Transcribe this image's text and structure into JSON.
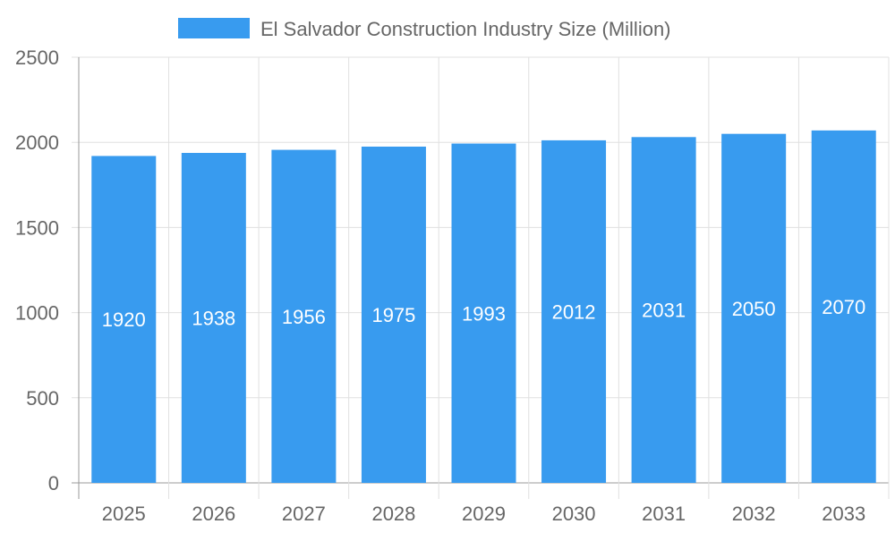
{
  "chart_data": {
    "type": "bar",
    "title": "",
    "xlabel": "",
    "ylabel": "",
    "categories": [
      "2025",
      "2026",
      "2027",
      "2028",
      "2029",
      "2030",
      "2031",
      "2032",
      "2033"
    ],
    "series": [
      {
        "name": "El Salvador Construction Industry Size (Million)",
        "values": [
          1920,
          1938,
          1956,
          1975,
          1993,
          2012,
          2031,
          2050,
          2070
        ]
      }
    ],
    "ylim": [
      0,
      2500
    ],
    "yticks": [
      0,
      500,
      1000,
      1500,
      2000,
      2500
    ],
    "grid": true,
    "legend_position": "top",
    "data_labels": true,
    "colors": {
      "bar": "#389BEF",
      "grid": "#e0e0e0",
      "axis": "#999999",
      "text": "#666666",
      "label": "#ffffff"
    }
  }
}
